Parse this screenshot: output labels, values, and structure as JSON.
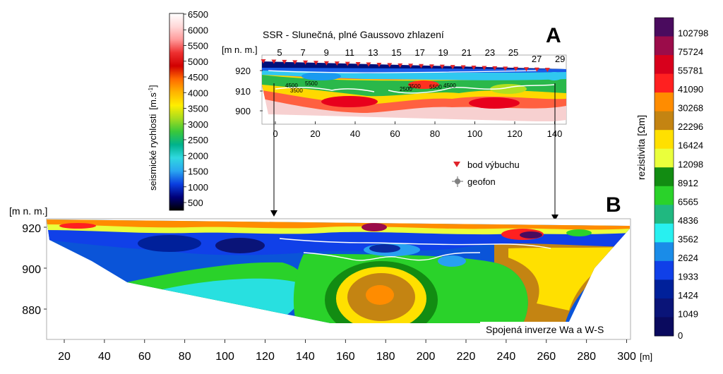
{
  "figure": {
    "panel_a_letter": "A",
    "panel_b_letter": "B"
  },
  "seismic_scale": {
    "title": "seismické rychlosti",
    "unit": "[m.s",
    "unit_sup": "-1",
    "unit_close": "]",
    "ticks": [
      "6500",
      "6000",
      "5500",
      "5000",
      "4500",
      "4000",
      "3500",
      "3000",
      "2500",
      "2000",
      "1500",
      "1000",
      "500"
    ],
    "colors": [
      "#ffffff",
      "#ffd8d8",
      "#ff9a9a",
      "#ee3030",
      "#d10000",
      "#ff6a00",
      "#ffb400",
      "#ffee00",
      "#a8dc1e",
      "#3ac83a",
      "#00b28c",
      "#30d8e0",
      "#2aa6f0",
      "#0a3ee0",
      "#00007a",
      "#000000"
    ]
  },
  "resistivity_scale": {
    "title": "rezistivita [Ωm]",
    "ticks": [
      "102798",
      "75724",
      "55781",
      "41090",
      "30268",
      "22296",
      "16424",
      "12098",
      "8912",
      "6565",
      "4836",
      "3562",
      "2624",
      "1933",
      "1424",
      "1049",
      "0"
    ],
    "colors": [
      "#4a0b5e",
      "#9b0c4a",
      "#d8001c",
      "#ff2020",
      "#ff8c00",
      "#c48412",
      "#ffe000",
      "#eaff3c",
      "#128c12",
      "#2ad22a",
      "#20b880",
      "#28f0f0",
      "#1a8ce8",
      "#1040e8",
      "#00209a",
      "#0a1478",
      "#0a0a5e"
    ]
  },
  "panel_a": {
    "title": "SSR - Slunečná, plné Gaussovo zhlazení",
    "y_unit": "[m n. m.]",
    "y_ticks": [
      "920",
      "910",
      "900"
    ],
    "x_ticks": [
      "0",
      "20",
      "40",
      "60",
      "80",
      "100",
      "120",
      "140"
    ],
    "shot_labels": [
      "5",
      "7",
      "9",
      "11",
      "13",
      "15",
      "17",
      "19",
      "21",
      "23",
      "25",
      "27",
      "29"
    ],
    "contour_labels": [
      "4500",
      "5500",
      "3500",
      "3500",
      "2500",
      "5500",
      "4500"
    ]
  },
  "legend": {
    "shot_label": "bod výbuchu",
    "geophone_label": "geofon",
    "shot_color": "#e0232a",
    "geophone_color": "#808080"
  },
  "panel_b": {
    "y_unit": "[m n. m.]",
    "y_ticks": [
      "920",
      "900",
      "880"
    ],
    "x_ticks": [
      "20",
      "40",
      "60",
      "80",
      "100",
      "120",
      "140",
      "160",
      "180",
      "200",
      "220",
      "240",
      "260",
      "280",
      "300"
    ],
    "x_unit": "[m]",
    "caption": "Spojená inverze Wa a W-S"
  }
}
